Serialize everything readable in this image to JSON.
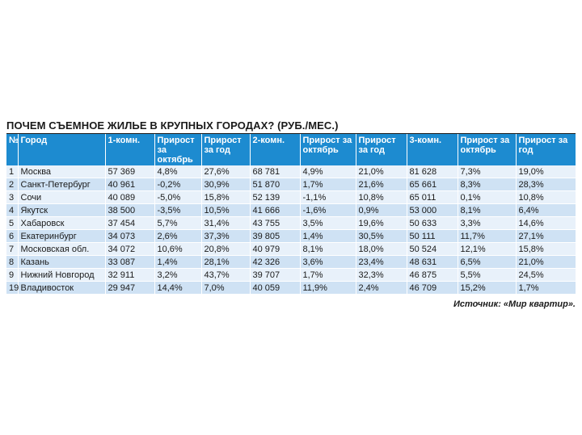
{
  "title": "ПОЧЕМ СЪЕМНОЕ ЖИЛЬЕ В КРУПНЫХ ГОРОДАХ? (РУБ./МЕС.)",
  "headers": [
    "№",
    "Город",
    "1-комн.",
    "Прирост за октябрь",
    "Прирост за год",
    "2-комн.",
    "Прирост за октябрь",
    "Прирост за год",
    "3-комн.",
    "Прирост за октябрь",
    "Прирост за год"
  ],
  "rows": [
    [
      "1",
      "Москва",
      "57 369",
      "4,8%",
      "27,6%",
      "68 781",
      "4,9%",
      "21,0%",
      "81 628",
      "7,3%",
      "19,0%"
    ],
    [
      "2",
      "Санкт-Петербург",
      "40 961",
      "-0,2%",
      "30,9%",
      "51 870",
      "1,7%",
      "21,6%",
      "65 661",
      "8,3%",
      "28,3%"
    ],
    [
      "3",
      "Сочи",
      "40 089",
      "-5,0%",
      "15,8%",
      "52 139",
      "-1,1%",
      "10,8%",
      "65 011",
      "0,1%",
      "10,8%"
    ],
    [
      "4",
      "Якутск",
      "38 500",
      "-3,5%",
      "10,5%",
      "41 666",
      "-1,6%",
      "0,9%",
      "53 000",
      "8,1%",
      "6,4%"
    ],
    [
      "5",
      "Хабаровск",
      "37 454",
      "5,7%",
      "31,4%",
      "43 755",
      "3,5%",
      "19,6%",
      "50 633",
      "3,3%",
      "14,6%"
    ],
    [
      "6",
      "Екатеринбург",
      "34 073",
      "2,6%",
      "37,3%",
      "39 805",
      "1,4%",
      "30,5%",
      "50 111",
      "11,7%",
      "27,1%"
    ],
    [
      "7",
      "Московская обл.",
      "34 072",
      "10,6%",
      "20,8%",
      "40 979",
      "8,1%",
      "18,0%",
      "50 524",
      "12,1%",
      "15,8%"
    ],
    [
      "8",
      "Казань",
      "33 087",
      "1,4%",
      "28,1%",
      "42 326",
      "3,6%",
      "23,4%",
      "48 631",
      "6,5%",
      "21,0%"
    ],
    [
      "9",
      "Нижний Новгород",
      "32 911",
      "3,2%",
      "43,7%",
      "39 707",
      "1,7%",
      "32,3%",
      "46 875",
      "5,5%",
      "24,5%"
    ],
    [
      "19",
      "Владивосток",
      "29 947",
      "14,4%",
      "7,0%",
      "40 059",
      "11,9%",
      "2,4%",
      "46 709",
      "15,2%",
      "1,7%"
    ]
  ],
  "source": "Источник: «Мир квартир»."
}
